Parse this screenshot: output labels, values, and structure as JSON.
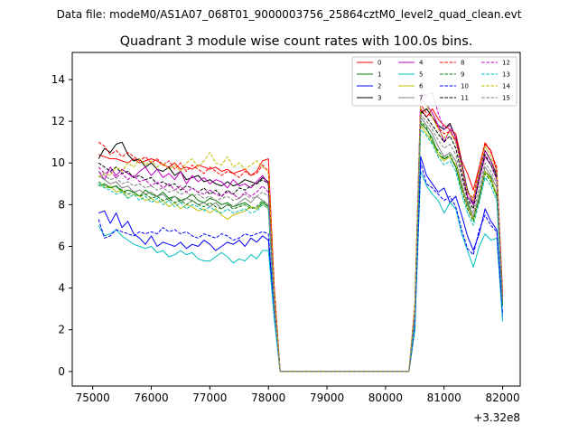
{
  "chart_data": {
    "type": "line",
    "suptitle": "Data file: modeM0/AS1A07_068T01_9000003756_25864cztM0_level2_quad_clean.evt",
    "title": "Quadrant 3 module wise count rates with 100.0s bins.",
    "xlabel": "",
    "ylabel": "",
    "x_offset_label": "+3.32e8",
    "xlim": [
      74650,
      82300
    ],
    "ylim": [
      -0.7,
      15.3
    ],
    "x_ticks": [
      75000,
      76000,
      77000,
      78000,
      79000,
      80000,
      81000,
      82000
    ],
    "x_tick_labels": [
      "75000",
      "76000",
      "77000",
      "78000",
      "79000",
      "80000",
      "81000",
      "82000"
    ],
    "y_ticks": [
      0,
      2,
      4,
      6,
      8,
      10,
      12,
      14
    ],
    "y_tick_labels": [
      "0",
      "2",
      "4",
      "6",
      "8",
      "10",
      "12",
      "14"
    ],
    "grid": false,
    "legend_position": "top-right",
    "segments": {
      "seg1_x": [
        75100,
        75200,
        75300,
        75400,
        75500,
        75600,
        75700,
        75800,
        75900,
        76000,
        76100,
        76200,
        76300,
        76400,
        76500,
        76600,
        76700,
        76800,
        76900,
        77000,
        77100,
        77200,
        77300,
        77400,
        77500,
        77600,
        77700,
        77800,
        77900,
        78000
      ],
      "drop_x": [
        78000,
        78100,
        78200
      ],
      "rise_x": [
        80400,
        80500,
        80600
      ],
      "seg2_x": [
        80600,
        80700,
        80800,
        80900,
        81000,
        81100,
        81200,
        81300,
        81400,
        81500,
        81600,
        81700,
        81800,
        81900,
        82000
      ]
    },
    "series": [
      {
        "name": "0",
        "color": "#ff0000",
        "dash": "solid",
        "seg1": [
          10.4,
          10.3,
          10.2,
          10.2,
          10.1,
          10.0,
          10.2,
          10.0,
          10.1,
          10.2,
          10.1,
          9.9,
          9.8,
          10.0,
          9.7,
          9.8,
          9.7,
          9.9,
          9.8,
          9.7,
          9.8,
          9.6,
          9.7,
          9.5,
          9.6,
          9.7,
          9.4,
          9.6,
          10.1,
          10.2
        ],
        "drop": [
          10.2,
          4.0,
          0.0
        ],
        "rise": [
          0.0,
          3.0,
          12.6
        ],
        "seg2": [
          12.6,
          12.2,
          12.6,
          12.1,
          11.8,
          11.6,
          11.4,
          10.1,
          9.5,
          8.7,
          9.8,
          10.9,
          10.6,
          9.6,
          3.8
        ]
      },
      {
        "name": "1",
        "color": "#008000",
        "dash": "solid",
        "seg1": [
          8.9,
          9.0,
          8.8,
          8.9,
          8.6,
          8.7,
          8.6,
          8.4,
          8.7,
          8.5,
          8.4,
          8.6,
          8.3,
          8.4,
          8.2,
          8.3,
          8.5,
          8.2,
          8.1,
          8.3,
          8.2,
          8.0,
          8.1,
          7.9,
          8.0,
          8.1,
          7.9,
          7.8,
          8.1,
          7.9
        ],
        "drop": [
          7.9,
          3.0,
          0.0
        ],
        "rise": [
          0.0,
          2.5,
          11.9
        ],
        "seg2": [
          11.9,
          11.6,
          11.2,
          10.4,
          10.2,
          10.3,
          9.8,
          8.8,
          8.1,
          7.4,
          8.2,
          9.6,
          9.3,
          8.4,
          3.2
        ]
      },
      {
        "name": "2",
        "color": "#0000ff",
        "dash": "solid",
        "seg1": [
          7.6,
          7.7,
          7.1,
          7.6,
          6.9,
          7.2,
          6.6,
          6.4,
          6.1,
          6.5,
          6.0,
          6.2,
          6.1,
          6.0,
          6.2,
          5.9,
          6.1,
          6.0,
          6.3,
          6.1,
          5.8,
          6.0,
          6.2,
          6.1,
          6.3,
          6.0,
          6.4,
          6.2,
          6.5,
          6.3
        ],
        "drop": [
          6.3,
          2.8,
          0.0
        ],
        "rise": [
          0.0,
          2.0,
          10.3
        ],
        "seg2": [
          10.3,
          9.4,
          9.0,
          8.6,
          8.8,
          8.1,
          8.4,
          7.5,
          6.5,
          5.8,
          6.6,
          7.8,
          7.2,
          6.8,
          2.6
        ]
      },
      {
        "name": "3",
        "color": "#000000",
        "dash": "solid",
        "seg1": [
          10.2,
          10.7,
          10.5,
          10.9,
          11.0,
          10.4,
          10.1,
          10.2,
          9.8,
          10.0,
          9.7,
          9.6,
          9.8,
          9.4,
          9.6,
          9.2,
          9.3,
          9.4,
          9.1,
          9.2,
          9.0,
          8.9,
          9.1,
          8.9,
          9.0,
          9.2,
          9.1,
          9.0,
          9.3,
          9.1
        ],
        "drop": [
          9.1,
          3.5,
          0.0
        ],
        "rise": [
          0.0,
          3.0,
          12.4
        ],
        "seg2": [
          12.4,
          12.6,
          12.2,
          11.8,
          11.6,
          11.9,
          11.2,
          10.0,
          8.7,
          8.0,
          9.5,
          10.6,
          10.1,
          9.4,
          3.4
        ]
      },
      {
        "name": "4",
        "color": "#bf00bf",
        "dash": "solid",
        "seg1": [
          9.6,
          9.2,
          9.8,
          9.4,
          9.7,
          9.5,
          9.3,
          9.6,
          9.8,
          9.4,
          9.7,
          9.3,
          9.5,
          9.2,
          9.6,
          9.0,
          9.4,
          9.1,
          9.3,
          9.0,
          9.2,
          9.1,
          8.8,
          9.2,
          8.9,
          9.0,
          8.8,
          9.1,
          9.4,
          9.0
        ],
        "drop": [
          9.0,
          3.5,
          0.0
        ],
        "rise": [
          0.0,
          3.0,
          13.1
        ],
        "seg2": [
          13.1,
          12.8,
          12.4,
          11.8,
          11.0,
          11.6,
          11.0,
          9.8,
          8.4,
          8.0,
          9.2,
          10.3,
          9.9,
          9.2,
          3.3
        ]
      },
      {
        "name": "5",
        "color": "#00bfbf",
        "dash": "solid",
        "seg1": [
          7.0,
          6.5,
          6.6,
          6.8,
          6.5,
          6.3,
          6.1,
          6.0,
          5.9,
          6.0,
          5.7,
          5.8,
          5.5,
          5.6,
          5.8,
          5.6,
          5.7,
          5.4,
          5.3,
          5.3,
          5.5,
          5.7,
          5.5,
          5.2,
          5.4,
          5.3,
          5.6,
          5.4,
          5.8,
          5.8
        ],
        "drop": [
          5.8,
          2.5,
          0.0
        ],
        "rise": [
          0.0,
          2.0,
          9.6
        ],
        "seg2": [
          9.6,
          8.9,
          8.5,
          8.2,
          7.6,
          8.1,
          7.8,
          6.6,
          5.8,
          5.0,
          6.0,
          6.6,
          6.3,
          6.4,
          2.4
        ]
      },
      {
        "name": "6",
        "color": "#bfbf00",
        "dash": "solid",
        "seg1": [
          9.0,
          8.8,
          8.9,
          8.6,
          8.7,
          8.3,
          8.5,
          8.4,
          8.2,
          8.3,
          8.1,
          8.2,
          7.9,
          8.1,
          7.8,
          8.0,
          7.9,
          7.7,
          7.8,
          7.6,
          7.8,
          7.5,
          7.3,
          7.5,
          7.6,
          7.7,
          7.9,
          7.8,
          8.0,
          7.8
        ],
        "drop": [
          7.8,
          3.0,
          0.0
        ],
        "rise": [
          0.0,
          2.5,
          11.8
        ],
        "seg2": [
          11.8,
          11.4,
          11.0,
          10.4,
          10.1,
          10.3,
          9.9,
          8.9,
          7.9,
          7.3,
          8.3,
          9.6,
          9.2,
          8.5,
          3.2
        ]
      },
      {
        "name": "7",
        "color": "#808080",
        "dash": "solid",
        "seg1": [
          9.4,
          9.2,
          9.0,
          9.1,
          8.8,
          8.9,
          8.6,
          8.7,
          8.5,
          8.6,
          8.4,
          8.5,
          8.2,
          8.4,
          8.1,
          8.3,
          8.2,
          8.0,
          8.1,
          7.9,
          8.1,
          7.8,
          8.0,
          7.9,
          8.1,
          8.3,
          8.1,
          8.4,
          8.2,
          8.0
        ],
        "drop": [
          8.0,
          3.2,
          0.0
        ],
        "rise": [
          0.0,
          2.8,
          12.2
        ],
        "seg2": [
          12.2,
          11.8,
          11.4,
          10.8,
          10.3,
          10.5,
          10.1,
          9.0,
          8.0,
          7.4,
          8.5,
          9.8,
          9.4,
          8.8,
          3.3
        ]
      },
      {
        "name": "8",
        "color": "#ff0000",
        "dash": "dashed",
        "seg1": [
          11.0,
          10.8,
          10.4,
          10.6,
          10.3,
          10.5,
          10.3,
          10.1,
          10.3,
          10.0,
          10.2,
          9.9,
          10.1,
          9.7,
          10.0,
          9.6,
          9.9,
          9.7,
          9.5,
          9.8,
          9.6,
          9.4,
          9.6,
          9.5,
          9.3,
          9.6,
          9.4,
          9.5,
          9.9,
          9.6
        ],
        "drop": [
          9.6,
          4.0,
          0.0
        ],
        "rise": [
          0.0,
          3.2,
          12.8
        ],
        "seg2": [
          12.8,
          12.4,
          12.2,
          11.7,
          11.4,
          11.5,
          11.1,
          9.9,
          8.6,
          8.3,
          9.8,
          11.0,
          10.5,
          9.8,
          3.6
        ]
      },
      {
        "name": "9",
        "color": "#008000",
        "dash": "dashed",
        "seg1": [
          9.1,
          8.9,
          8.8,
          8.9,
          8.7,
          8.5,
          8.6,
          8.4,
          8.5,
          8.3,
          8.4,
          8.2,
          8.3,
          8.1,
          8.2,
          8.0,
          8.2,
          8.0,
          7.9,
          8.1,
          7.9,
          7.8,
          8.0,
          7.8,
          7.9,
          8.0,
          7.8,
          7.9,
          8.2,
          7.9
        ],
        "drop": [
          7.9,
          3.0,
          0.0
        ],
        "rise": [
          0.0,
          2.6,
          12.0
        ],
        "seg2": [
          12.0,
          11.7,
          11.0,
          10.6,
          10.2,
          10.4,
          9.8,
          8.7,
          7.8,
          7.2,
          8.3,
          9.5,
          9.1,
          8.4,
          3.2
        ]
      },
      {
        "name": "10",
        "color": "#0000ff",
        "dash": "dashed",
        "seg1": [
          7.3,
          6.4,
          6.5,
          6.8,
          6.7,
          6.6,
          6.5,
          6.7,
          6.6,
          6.7,
          6.6,
          6.9,
          6.7,
          6.8,
          6.6,
          6.7,
          6.5,
          6.4,
          6.6,
          6.5,
          6.4,
          6.6,
          6.5,
          6.3,
          6.4,
          6.6,
          6.5,
          6.6,
          6.7,
          6.6
        ],
        "drop": [
          6.6,
          2.8,
          0.0
        ],
        "rise": [
          0.0,
          2.2,
          10.0
        ],
        "seg2": [
          10.0,
          9.0,
          8.8,
          8.5,
          8.2,
          8.4,
          7.9,
          6.8,
          5.9,
          5.6,
          6.8,
          7.5,
          7.0,
          6.7,
          2.8
        ]
      },
      {
        "name": "11",
        "color": "#000000",
        "dash": "dashed",
        "seg1": [
          10.0,
          9.8,
          9.6,
          9.8,
          9.5,
          9.6,
          9.3,
          9.4,
          9.2,
          9.3,
          9.0,
          9.1,
          8.9,
          9.0,
          8.7,
          8.9,
          8.8,
          8.6,
          8.8,
          8.5,
          8.7,
          8.4,
          8.7,
          8.5,
          8.8,
          8.7,
          8.9,
          9.0,
          9.2,
          9.0
        ],
        "drop": [
          9.0,
          3.4,
          0.0
        ],
        "rise": [
          0.0,
          3.0,
          12.5
        ],
        "seg2": [
          12.5,
          12.2,
          11.8,
          11.4,
          11.0,
          11.3,
          10.7,
          9.5,
          8.3,
          7.8,
          9.2,
          10.4,
          9.9,
          9.3,
          3.4
        ]
      },
      {
        "name": "12",
        "color": "#bf00bf",
        "dash": "dashed",
        "seg1": [
          9.8,
          9.5,
          9.6,
          9.3,
          9.5,
          9.2,
          9.4,
          9.1,
          9.2,
          8.9,
          9.1,
          8.8,
          9.0,
          8.7,
          8.9,
          8.6,
          8.8,
          8.6,
          8.5,
          8.7,
          8.5,
          8.4,
          8.6,
          8.5,
          8.3,
          8.6,
          8.4,
          8.6,
          8.9,
          8.6
        ],
        "drop": [
          8.6,
          3.3,
          0.0
        ],
        "rise": [
          0.0,
          2.9,
          13.3
        ],
        "seg2": [
          13.3,
          13.2,
          13.4,
          12.4,
          11.6,
          11.8,
          11.2,
          9.9,
          8.6,
          8.1,
          9.4,
          10.6,
          10.1,
          9.5,
          3.4
        ]
      },
      {
        "name": "13",
        "color": "#00bfbf",
        "dash": "dashed",
        "seg1": [
          9.0,
          8.8,
          8.7,
          8.5,
          8.6,
          8.3,
          8.5,
          8.2,
          8.4,
          8.1,
          8.3,
          8.0,
          8.2,
          7.9,
          8.1,
          7.8,
          8.0,
          7.9,
          7.7,
          7.9,
          7.7,
          7.6,
          7.8,
          7.6,
          7.7,
          7.8,
          7.6,
          7.7,
          8.0,
          7.8
        ],
        "drop": [
          7.8,
          2.9,
          0.0
        ],
        "rise": [
          0.0,
          2.4,
          11.6
        ],
        "seg2": [
          11.6,
          11.3,
          10.9,
          10.3,
          9.9,
          10.1,
          9.6,
          8.5,
          7.6,
          7.0,
          8.1,
          9.3,
          8.9,
          8.2,
          3.1
        ]
      },
      {
        "name": "14",
        "color": "#bfbf00",
        "dash": "dashed",
        "seg1": [
          9.3,
          9.5,
          9.4,
          9.8,
          9.6,
          10.0,
          9.8,
          10.2,
          9.9,
          10.1,
          9.8,
          10.0,
          9.7,
          9.9,
          9.6,
          10.0,
          10.2,
          9.8,
          10.1,
          10.5,
          10.0,
          9.9,
          10.3,
          9.8,
          10.0,
          9.7,
          9.9,
          10.1,
          9.8,
          9.6
        ],
        "drop": [
          9.6,
          3.8,
          0.0
        ],
        "rise": [
          0.0,
          3.2,
          13.0
        ],
        "seg2": [
          13.0,
          12.8,
          12.2,
          11.6,
          11.2,
          11.5,
          11.0,
          9.8,
          8.6,
          8.2,
          9.6,
          10.8,
          10.3,
          9.6,
          3.5
        ]
      },
      {
        "name": "15",
        "color": "#808080",
        "dash": "dashed",
        "seg1": [
          9.6,
          9.4,
          9.2,
          9.3,
          9.0,
          9.1,
          8.9,
          9.0,
          8.8,
          8.9,
          8.7,
          8.8,
          8.6,
          8.7,
          8.5,
          8.6,
          8.4,
          8.5,
          8.3,
          8.4,
          8.2,
          8.3,
          8.4,
          8.2,
          8.3,
          8.5,
          8.3,
          8.4,
          8.6,
          8.4
        ],
        "drop": [
          8.4,
          3.2,
          0.0
        ],
        "rise": [
          0.0,
          2.8,
          12.3
        ],
        "seg2": [
          12.3,
          12.0,
          11.6,
          11.1,
          10.7,
          10.9,
          10.4,
          9.3,
          8.2,
          7.6,
          8.8,
          10.0,
          9.6,
          9.0,
          3.4
        ]
      }
    ]
  }
}
